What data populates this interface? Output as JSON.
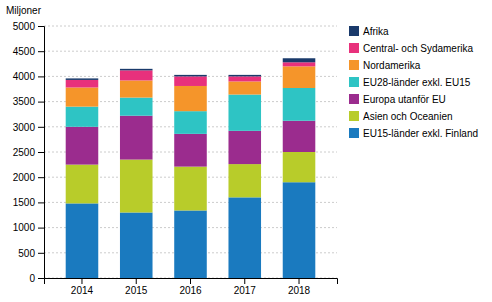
{
  "chart_data": {
    "type": "bar",
    "stacked": true,
    "ylabel": "Miljoner",
    "categories": [
      "2014",
      "2015",
      "2016",
      "2017",
      "2018"
    ],
    "series": [
      {
        "name": "EU15-länder exkl. Finland",
        "color": "#1a7abf",
        "values": [
          1480,
          1300,
          1340,
          1600,
          1900
        ]
      },
      {
        "name": "Asien och Oceanien",
        "color": "#b8cc2a",
        "values": [
          770,
          1050,
          870,
          660,
          600
        ]
      },
      {
        "name": "Europa utanför EU",
        "color": "#9b2c8e",
        "values": [
          750,
          870,
          650,
          660,
          620
        ]
      },
      {
        "name": "EU28-länder exkl. EU15",
        "color": "#2ec4c4",
        "values": [
          400,
          360,
          450,
          720,
          650
        ]
      },
      {
        "name": "Nordamerika",
        "color": "#f5952a",
        "values": [
          380,
          340,
          500,
          260,
          430
        ]
      },
      {
        "name": "Central- och Sydamerika",
        "color": "#e8317c",
        "values": [
          150,
          200,
          190,
          100,
          80
        ]
      },
      {
        "name": "Afrika",
        "color": "#1a3a6b",
        "values": [
          30,
          30,
          30,
          30,
          80
        ]
      }
    ],
    "ylim": [
      0,
      5000
    ],
    "yticks": [
      0,
      500,
      1000,
      1500,
      2000,
      2500,
      3000,
      3500,
      4000,
      4500,
      5000
    ],
    "grid": true,
    "legend": "right"
  }
}
